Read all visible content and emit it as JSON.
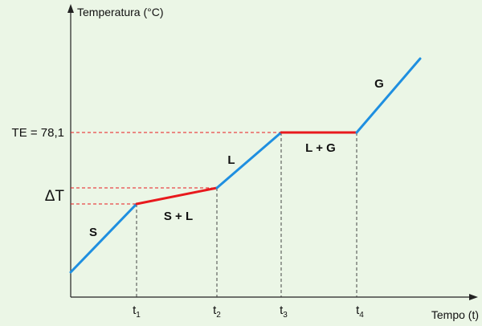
{
  "chart_data": {
    "type": "line",
    "title": "",
    "ylabel": "Temperatura (°C)",
    "xlabel": "Tempo (t)",
    "boiling_point_label": "TE = 78,1",
    "delta_label": "ΔT",
    "x_ticks": [
      {
        "base": "t",
        "sub": "1"
      },
      {
        "base": "t",
        "sub": "2"
      },
      {
        "base": "t",
        "sub": "3"
      },
      {
        "base": "t",
        "sub": "4"
      }
    ],
    "phase_labels": [
      "S",
      "S + L",
      "L",
      "L + G",
      "G"
    ],
    "colors": {
      "single_phase": "#1f8fe0",
      "phase_change": "#e8191d",
      "guides": "#e8191d",
      "axis": "#222222"
    }
  }
}
